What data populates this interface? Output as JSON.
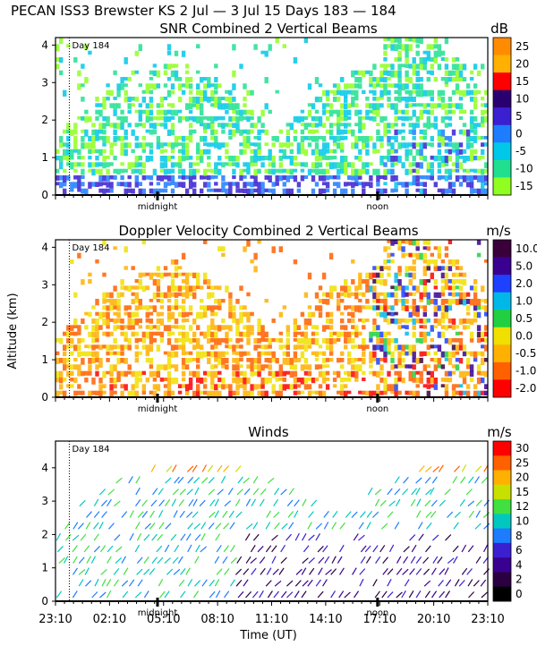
{
  "header": {
    "title": "PECAN ISS3 Brewster KS    2 Jul —   3 Jul 15 Days 183 — 184"
  },
  "chart_data": [
    {
      "type": "heatmap",
      "title": "SNR Combined 2 Vertical Beams",
      "unit": "dB",
      "ylim": [
        0,
        4.2
      ],
      "yticks": [
        "0",
        "1",
        "2",
        "3",
        "4"
      ],
      "day_label": "Day 184",
      "markers": [
        "midnight",
        "noon"
      ],
      "scale": [
        {
          "label": "25",
          "color": "#ff8c00"
        },
        {
          "label": "20",
          "color": "#ffb000"
        },
        {
          "label": "15",
          "color": "#ff0000"
        },
        {
          "label": "10",
          "color": "#2a0070"
        },
        {
          "label": "5",
          "color": "#3a20d0"
        },
        {
          "label": "0",
          "color": "#1e7cff"
        },
        {
          "label": "-5",
          "color": "#00c8e8"
        },
        {
          "label": "-10",
          "color": "#20e090"
        },
        {
          "label": "-15",
          "color": "#90ff20"
        }
      ]
    },
    {
      "type": "heatmap",
      "title": "Doppler Velocity Combined 2 Vertical Beams",
      "unit": "m/s",
      "ylabel": "Altitude (km)",
      "ylim": [
        0,
        4.2
      ],
      "yticks": [
        "0",
        "1",
        "2",
        "3",
        "4"
      ],
      "day_label": "Day 184",
      "markers": [
        "midnight",
        "noon"
      ],
      "scale": [
        {
          "label": "10.0",
          "color": "#3a003a"
        },
        {
          "label": "5.0",
          "color": "#3a0090"
        },
        {
          "label": "2.0",
          "color": "#1e40ff"
        },
        {
          "label": "1.0",
          "color": "#00b8e8"
        },
        {
          "label": "0.5",
          "color": "#20d040"
        },
        {
          "label": "0.0",
          "color": "#f0e000"
        },
        {
          "label": "-0.5",
          "color": "#ffb000"
        },
        {
          "label": "-1.0",
          "color": "#ff6000"
        },
        {
          "label": "-2.0",
          "color": "#ff0000"
        }
      ]
    },
    {
      "type": "scatter",
      "title": "Winds",
      "unit": "m/s",
      "xlabel": "Time (UT)",
      "ylim": [
        0,
        4.8
      ],
      "yticks": [
        "0",
        "1",
        "2",
        "3",
        "4"
      ],
      "xticks": [
        "23:10",
        "02:10",
        "05:10",
        "08:10",
        "11:10",
        "14:10",
        "17:10",
        "20:10",
        "23:10"
      ],
      "day_label": "Day 184",
      "markers": [
        "midnight",
        "noon"
      ],
      "scale": [
        {
          "label": "30",
          "color": "#ff0000"
        },
        {
          "label": "25",
          "color": "#ff6000"
        },
        {
          "label": "20",
          "color": "#ffb000"
        },
        {
          "label": "15",
          "color": "#c8e000"
        },
        {
          "label": "12",
          "color": "#40e040"
        },
        {
          "label": "10",
          "color": "#00c8c0"
        },
        {
          "label": "8",
          "color": "#1e7cff"
        },
        {
          "label": "6",
          "color": "#3a20d0"
        },
        {
          "label": "4",
          "color": "#3a0090"
        },
        {
          "label": "2",
          "color": "#2a0040"
        },
        {
          "label": "0",
          "color": "#000000"
        }
      ]
    }
  ]
}
